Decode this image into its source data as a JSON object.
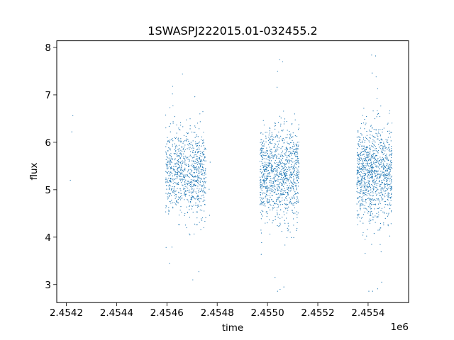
{
  "chart_data": {
    "type": "scatter",
    "title": "1SWASPJ222015.01-032455.2",
    "xlabel": "time",
    "ylabel": "flux",
    "x_offset_label": "1e6",
    "xlim": [
      2454162,
      2455561
    ],
    "ylim": [
      2.62,
      8.14
    ],
    "x_ticks": [
      2454200,
      2454400,
      2454600,
      2454800,
      2455000,
      2455200,
      2455400
    ],
    "x_tick_labels": [
      "2.4542",
      "2.4544",
      "2.4546",
      "2.4548",
      "2.4550",
      "2.4552",
      "2.4554"
    ],
    "y_ticks": [
      3,
      4,
      5,
      6,
      7,
      8
    ],
    "y_tick_labels": [
      "3",
      "4",
      "5",
      "6",
      "7",
      "8"
    ],
    "grid": false,
    "legend": "none",
    "marker_color": "#1f77b4",
    "series": [
      {
        "clusters": [
          {
            "x_range": [
              2454595,
              2454755
            ],
            "y_center": 5.35,
            "y_spread": 0.45,
            "n": 900
          },
          {
            "x_range": [
              2454970,
              2455125
            ],
            "y_center": 5.3,
            "y_spread": 0.5,
            "n": 1100
          },
          {
            "x_range": [
              2455355,
              2455495
            ],
            "y_center": 5.35,
            "y_spread": 0.5,
            "n": 1100
          }
        ],
        "points": [
          [
            2454226,
            6.56
          ],
          [
            2454222,
            6.22
          ],
          [
            2454216,
            5.2
          ],
          [
            2454623,
            7.18
          ],
          [
            2454622,
            7.02
          ],
          [
            2454610,
            3.45
          ],
          [
            2454662,
            7.44
          ],
          [
            2454620,
            3.79
          ],
          [
            2454703,
            3.1
          ],
          [
            2454727,
            3.27
          ],
          [
            2454711,
            6.96
          ],
          [
            2454770,
            4.46
          ],
          [
            2454768,
            5.01
          ],
          [
            2454772,
            5.58
          ],
          [
            2455048,
            7.74
          ],
          [
            2455060,
            7.7
          ],
          [
            2455038,
            7.16
          ],
          [
            2455040,
            7.5
          ],
          [
            2455050,
            2.9
          ],
          [
            2455040,
            2.86
          ],
          [
            2455030,
            3.15
          ],
          [
            2455065,
            2.95
          ],
          [
            2455414,
            7.84
          ],
          [
            2455430,
            7.82
          ],
          [
            2455416,
            7.46
          ],
          [
            2455432,
            7.38
          ],
          [
            2455403,
            2.86
          ],
          [
            2455418,
            2.86
          ],
          [
            2455438,
            2.91
          ],
          [
            2455454,
            3.05
          ]
        ]
      }
    ]
  }
}
